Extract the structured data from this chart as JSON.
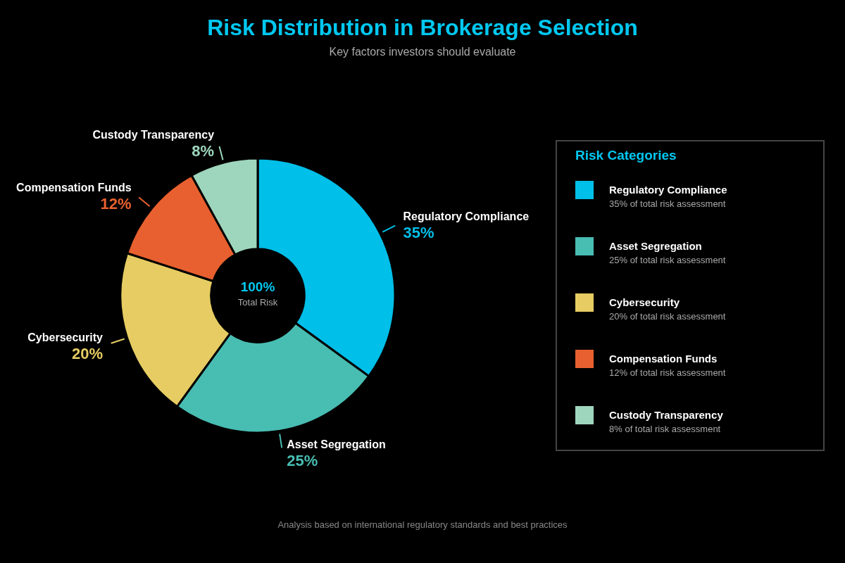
{
  "chart_data": {
    "type": "donut",
    "title": "Risk Distribution in Brokerage Selection",
    "subtitle": "Key factors investors should evaluate",
    "categories": [
      "Regulatory Compliance",
      "Asset Segregation",
      "Cybersecurity",
      "Compensation Funds",
      "Custody Transparency"
    ],
    "values": [
      35,
      25,
      20,
      12,
      8
    ],
    "colors": [
      "#00bfe8",
      "#48bdb2",
      "#e6cc62",
      "#e8602f",
      "#9ed6bd"
    ],
    "value_labels": [
      "35%",
      "25%",
      "20%",
      "12%",
      "8%"
    ],
    "legend_title": "Risk Categories",
    "legend": "right",
    "annotations": [
      "100%",
      "Total Risk",
      "35% of total risk assessment",
      "25% of total risk assessment",
      "20% of total risk assessment",
      "12% of total risk assessment",
      "8% of total risk assessment",
      "Analysis based on international regulatory standards and best practices"
    ]
  }
}
